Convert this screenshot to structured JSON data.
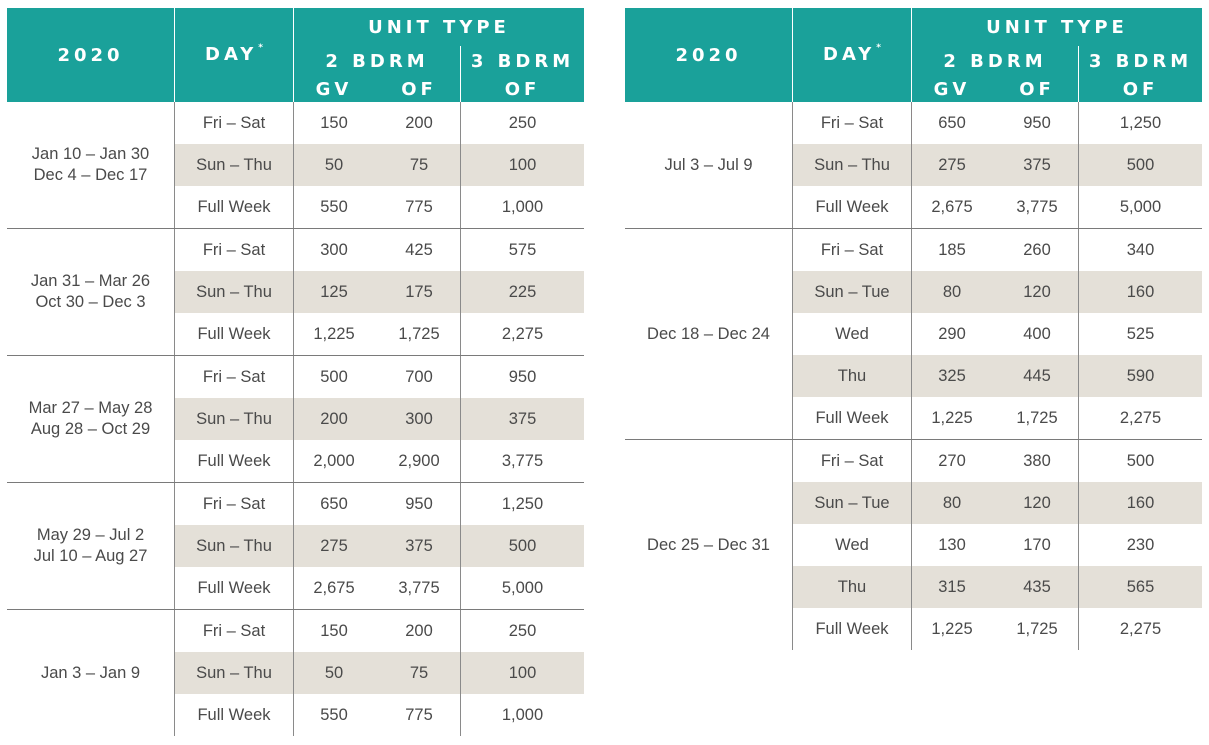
{
  "header": {
    "year": "2020",
    "day": "DAY",
    "day_mark": "*",
    "unit_type": "UNIT TYPE",
    "bdrm2": "2 BDRM",
    "bdrm3": "3 BDRM",
    "gv": "GV",
    "of": "OF"
  },
  "left_table": [
    {
      "range": [
        "Jan 10 – Jan 30",
        "Dec 4 – Dec 17"
      ],
      "rows": [
        {
          "day": "Fri – Sat",
          "gv2": "150",
          "of2": "200",
          "of3": "250"
        },
        {
          "day": "Sun – Thu",
          "gv2": "50",
          "of2": "75",
          "of3": "100"
        },
        {
          "day": "Full Week",
          "gv2": "550",
          "of2": "775",
          "of3": "1,000"
        }
      ]
    },
    {
      "range": [
        "Jan 31 – Mar 26",
        "Oct 30 – Dec 3"
      ],
      "rows": [
        {
          "day": "Fri – Sat",
          "gv2": "300",
          "of2": "425",
          "of3": "575"
        },
        {
          "day": "Sun – Thu",
          "gv2": "125",
          "of2": "175",
          "of3": "225"
        },
        {
          "day": "Full Week",
          "gv2": "1,225",
          "of2": "1,725",
          "of3": "2,275"
        }
      ]
    },
    {
      "range": [
        "Mar 27 – May 28",
        "Aug 28 – Oct 29"
      ],
      "rows": [
        {
          "day": "Fri – Sat",
          "gv2": "500",
          "of2": "700",
          "of3": "950"
        },
        {
          "day": "Sun – Thu",
          "gv2": "200",
          "of2": "300",
          "of3": "375"
        },
        {
          "day": "Full Week",
          "gv2": "2,000",
          "of2": "2,900",
          "of3": "3,775"
        }
      ]
    },
    {
      "range": [
        "May 29 – Jul 2",
        "Jul 10 – Aug 27"
      ],
      "rows": [
        {
          "day": "Fri – Sat",
          "gv2": "650",
          "of2": "950",
          "of3": "1,250"
        },
        {
          "day": "Sun – Thu",
          "gv2": "275",
          "of2": "375",
          "of3": "500"
        },
        {
          "day": "Full Week",
          "gv2": "2,675",
          "of2": "3,775",
          "of3": "5,000"
        }
      ]
    },
    {
      "range": [
        "Jan 3 – Jan 9"
      ],
      "rows": [
        {
          "day": "Fri – Sat",
          "gv2": "150",
          "of2": "200",
          "of3": "250"
        },
        {
          "day": "Sun – Thu",
          "gv2": "50",
          "of2": "75",
          "of3": "100"
        },
        {
          "day": "Full Week",
          "gv2": "550",
          "of2": "775",
          "of3": "1,000"
        }
      ]
    }
  ],
  "right_table": [
    {
      "range": [
        "Jul 3 – Jul 9"
      ],
      "rows": [
        {
          "day": "Fri – Sat",
          "gv2": "650",
          "of2": "950",
          "of3": "1,250"
        },
        {
          "day": "Sun – Thu",
          "gv2": "275",
          "of2": "375",
          "of3": "500"
        },
        {
          "day": "Full Week",
          "gv2": "2,675",
          "of2": "3,775",
          "of3": "5,000"
        }
      ]
    },
    {
      "range": [
        "Dec 18 – Dec 24"
      ],
      "rows": [
        {
          "day": "Fri – Sat",
          "gv2": "185",
          "of2": "260",
          "of3": "340"
        },
        {
          "day": "Sun – Tue",
          "gv2": "80",
          "of2": "120",
          "of3": "160"
        },
        {
          "day": "Wed",
          "gv2": "290",
          "of2": "400",
          "of3": "525"
        },
        {
          "day": "Thu",
          "gv2": "325",
          "of2": "445",
          "of3": "590"
        },
        {
          "day": "Full Week",
          "gv2": "1,225",
          "of2": "1,725",
          "of3": "2,275"
        }
      ]
    },
    {
      "range": [
        "Dec 25 – Dec 31"
      ],
      "rows": [
        {
          "day": "Fri – Sat",
          "gv2": "270",
          "of2": "380",
          "of3": "500"
        },
        {
          "day": "Sun – Tue",
          "gv2": "80",
          "of2": "120",
          "of3": "160"
        },
        {
          "day": "Wed",
          "gv2": "130",
          "of2": "170",
          "of3": "230"
        },
        {
          "day": "Thu",
          "gv2": "315",
          "of2": "435",
          "of3": "565"
        },
        {
          "day": "Full Week",
          "gv2": "1,225",
          "of2": "1,725",
          "of3": "2,275"
        }
      ]
    }
  ],
  "colors": {
    "header_bg": "#1aa19a",
    "shade": "#e4e0d8",
    "text": "#4a4a4a"
  }
}
